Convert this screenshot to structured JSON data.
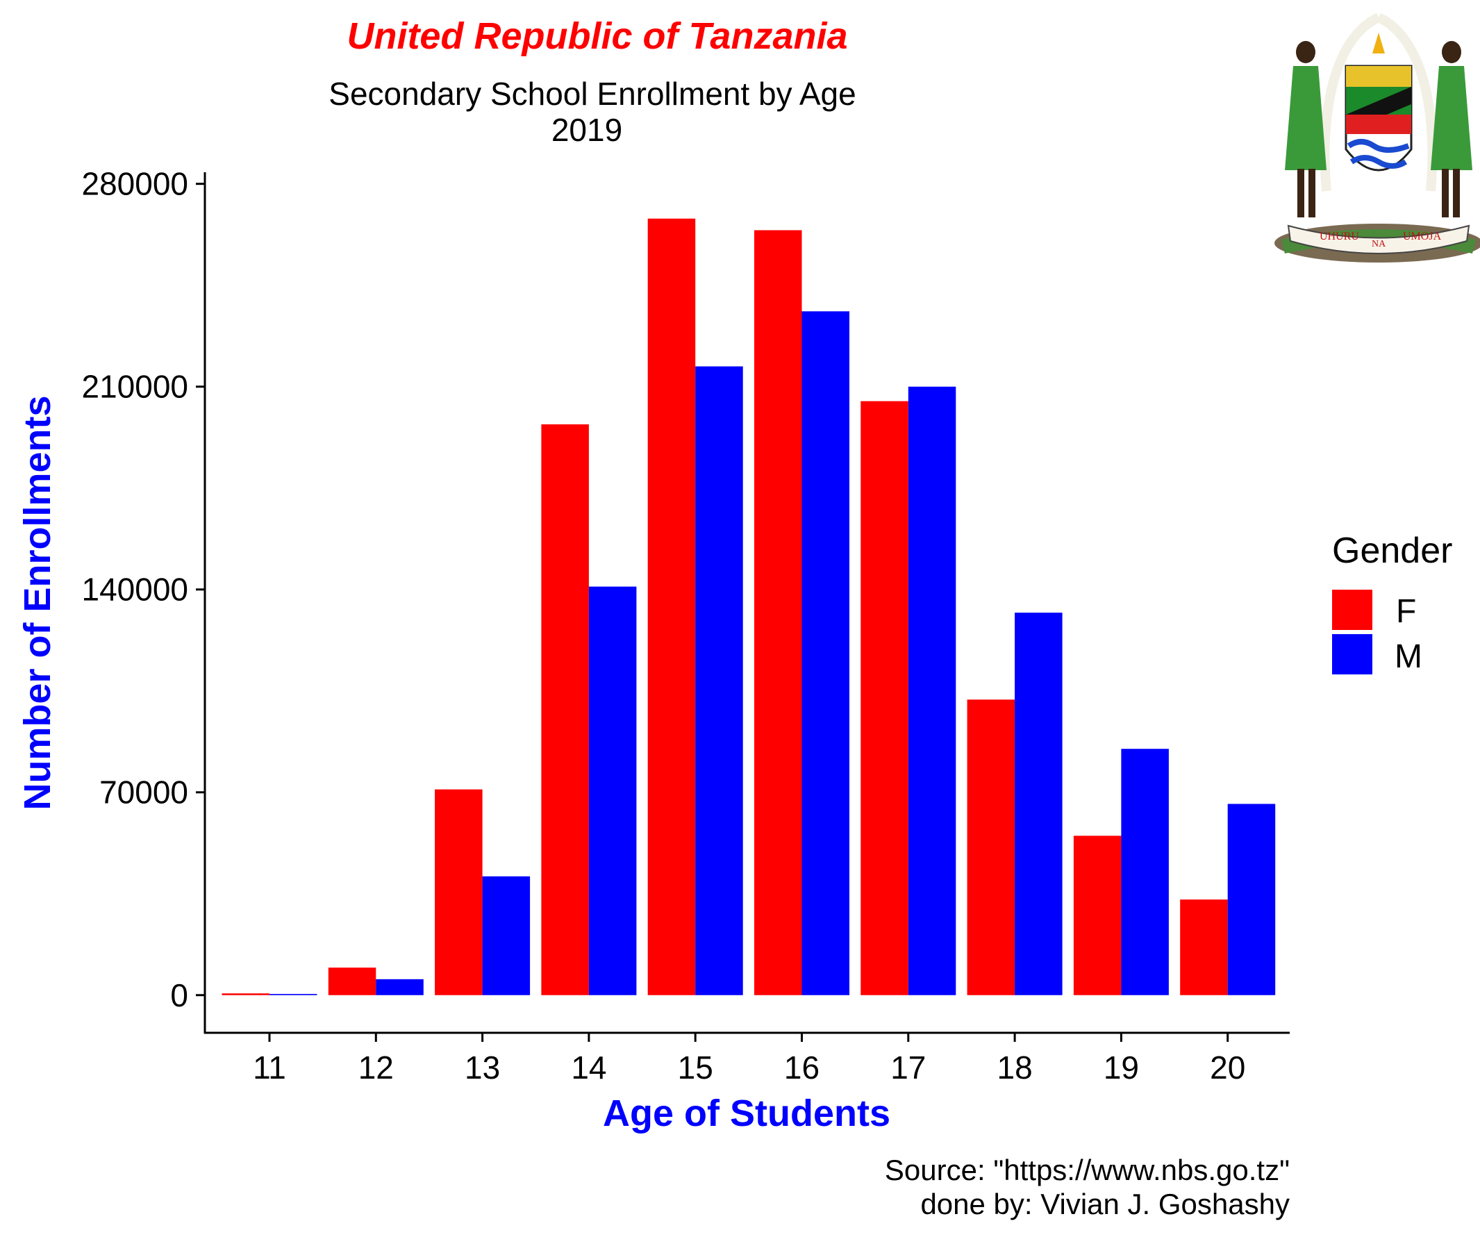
{
  "title": "United Republic of Tanzania",
  "subtitle_line1": "Secondary School Enrollment by Age",
  "subtitle_line2": "2019",
  "colors": {
    "title": "#ff0000",
    "axis_title": "#0000ff",
    "F": "#ff0000",
    "M": "#0000ff"
  },
  "emblem": {
    "icon": "tanzania-coat-of-arms-icon",
    "motto_left": "UHURU",
    "motto_mid": "NA",
    "motto_right": "UMOJA"
  },
  "legend": {
    "title": "Gender",
    "placement": "right"
  },
  "caption_line1": "Source: \"https://www.nbs.go.tz\"",
  "caption_line2": "done by: Vivian J. Goshashy",
  "chart_data": {
    "type": "bar",
    "title": "United Republic of Tanzania",
    "subtitle": "Secondary School Enrollment by Age 2019",
    "xlabel": "Age of Students",
    "ylabel": "Number of Enrollments",
    "categories": [
      "11",
      "12",
      "13",
      "14",
      "15",
      "16",
      "17",
      "18",
      "19",
      "20"
    ],
    "series": [
      {
        "name": "F",
        "values": [
          600,
          9500,
          71000,
          197000,
          268000,
          264000,
          205000,
          102000,
          55000,
          33000
        ]
      },
      {
        "name": "M",
        "values": [
          400,
          5500,
          41000,
          141000,
          217000,
          236000,
          210000,
          132000,
          85000,
          66000
        ]
      }
    ],
    "ylim": [
      -13000,
      284000
    ],
    "yticks": [
      0,
      70000,
      140000,
      210000,
      280000
    ],
    "grid": false,
    "legend": "right"
  }
}
